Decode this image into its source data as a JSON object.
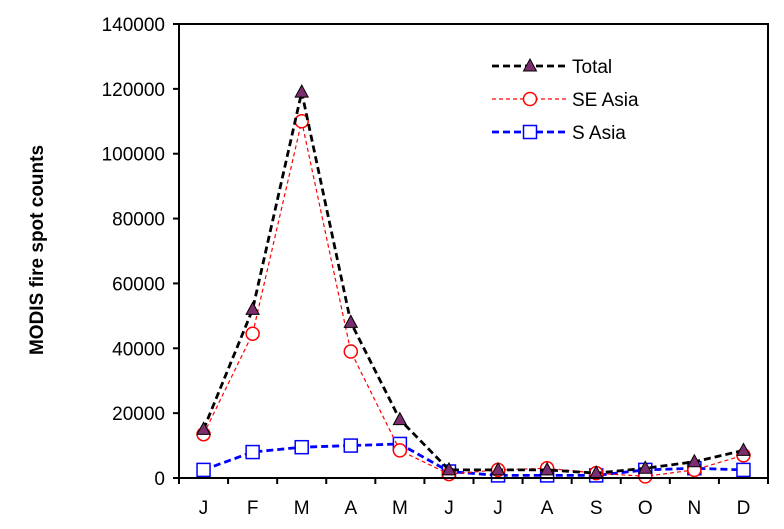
{
  "chart_data": {
    "type": "line",
    "title": "",
    "xlabel": "",
    "ylabel": "MODIS fire spot counts",
    "categories": [
      "J",
      "F",
      "M",
      "A",
      "M",
      "J",
      "J",
      "A",
      "S",
      "O",
      "N",
      "D"
    ],
    "ylim": [
      0,
      140000
    ],
    "yticks": [
      0,
      20000,
      40000,
      60000,
      80000,
      100000,
      120000,
      140000
    ],
    "ytick_labels": [
      "0",
      "20000",
      "40000",
      "60000",
      "80000",
      "100000",
      "120000",
      "140000"
    ],
    "grid": false,
    "legend_position": "top-right",
    "series": [
      {
        "name": "Total",
        "color": "#000000",
        "marker": "triangle",
        "marker_fill": "#7b2d6e",
        "line_style": "dashed-thick",
        "values": [
          15000,
          52000,
          119000,
          48000,
          18000,
          2500,
          2500,
          2500,
          1500,
          3000,
          5000,
          8500
        ]
      },
      {
        "name": "SE Asia",
        "color": "#ff0000",
        "marker": "circle",
        "marker_fill": "#ffffff",
        "line_style": "dashed-thin",
        "values": [
          13500,
          44500,
          110000,
          39000,
          8500,
          1200,
          2500,
          3000,
          1500,
          500,
          2500,
          7000
        ]
      },
      {
        "name": "S Asia",
        "color": "#0000ff",
        "marker": "square",
        "marker_fill": "#ffffff",
        "line_style": "dashed-thick",
        "values": [
          2500,
          8000,
          9500,
          10000,
          10500,
          2000,
          800,
          800,
          800,
          2500,
          3000,
          2500
        ]
      }
    ]
  }
}
